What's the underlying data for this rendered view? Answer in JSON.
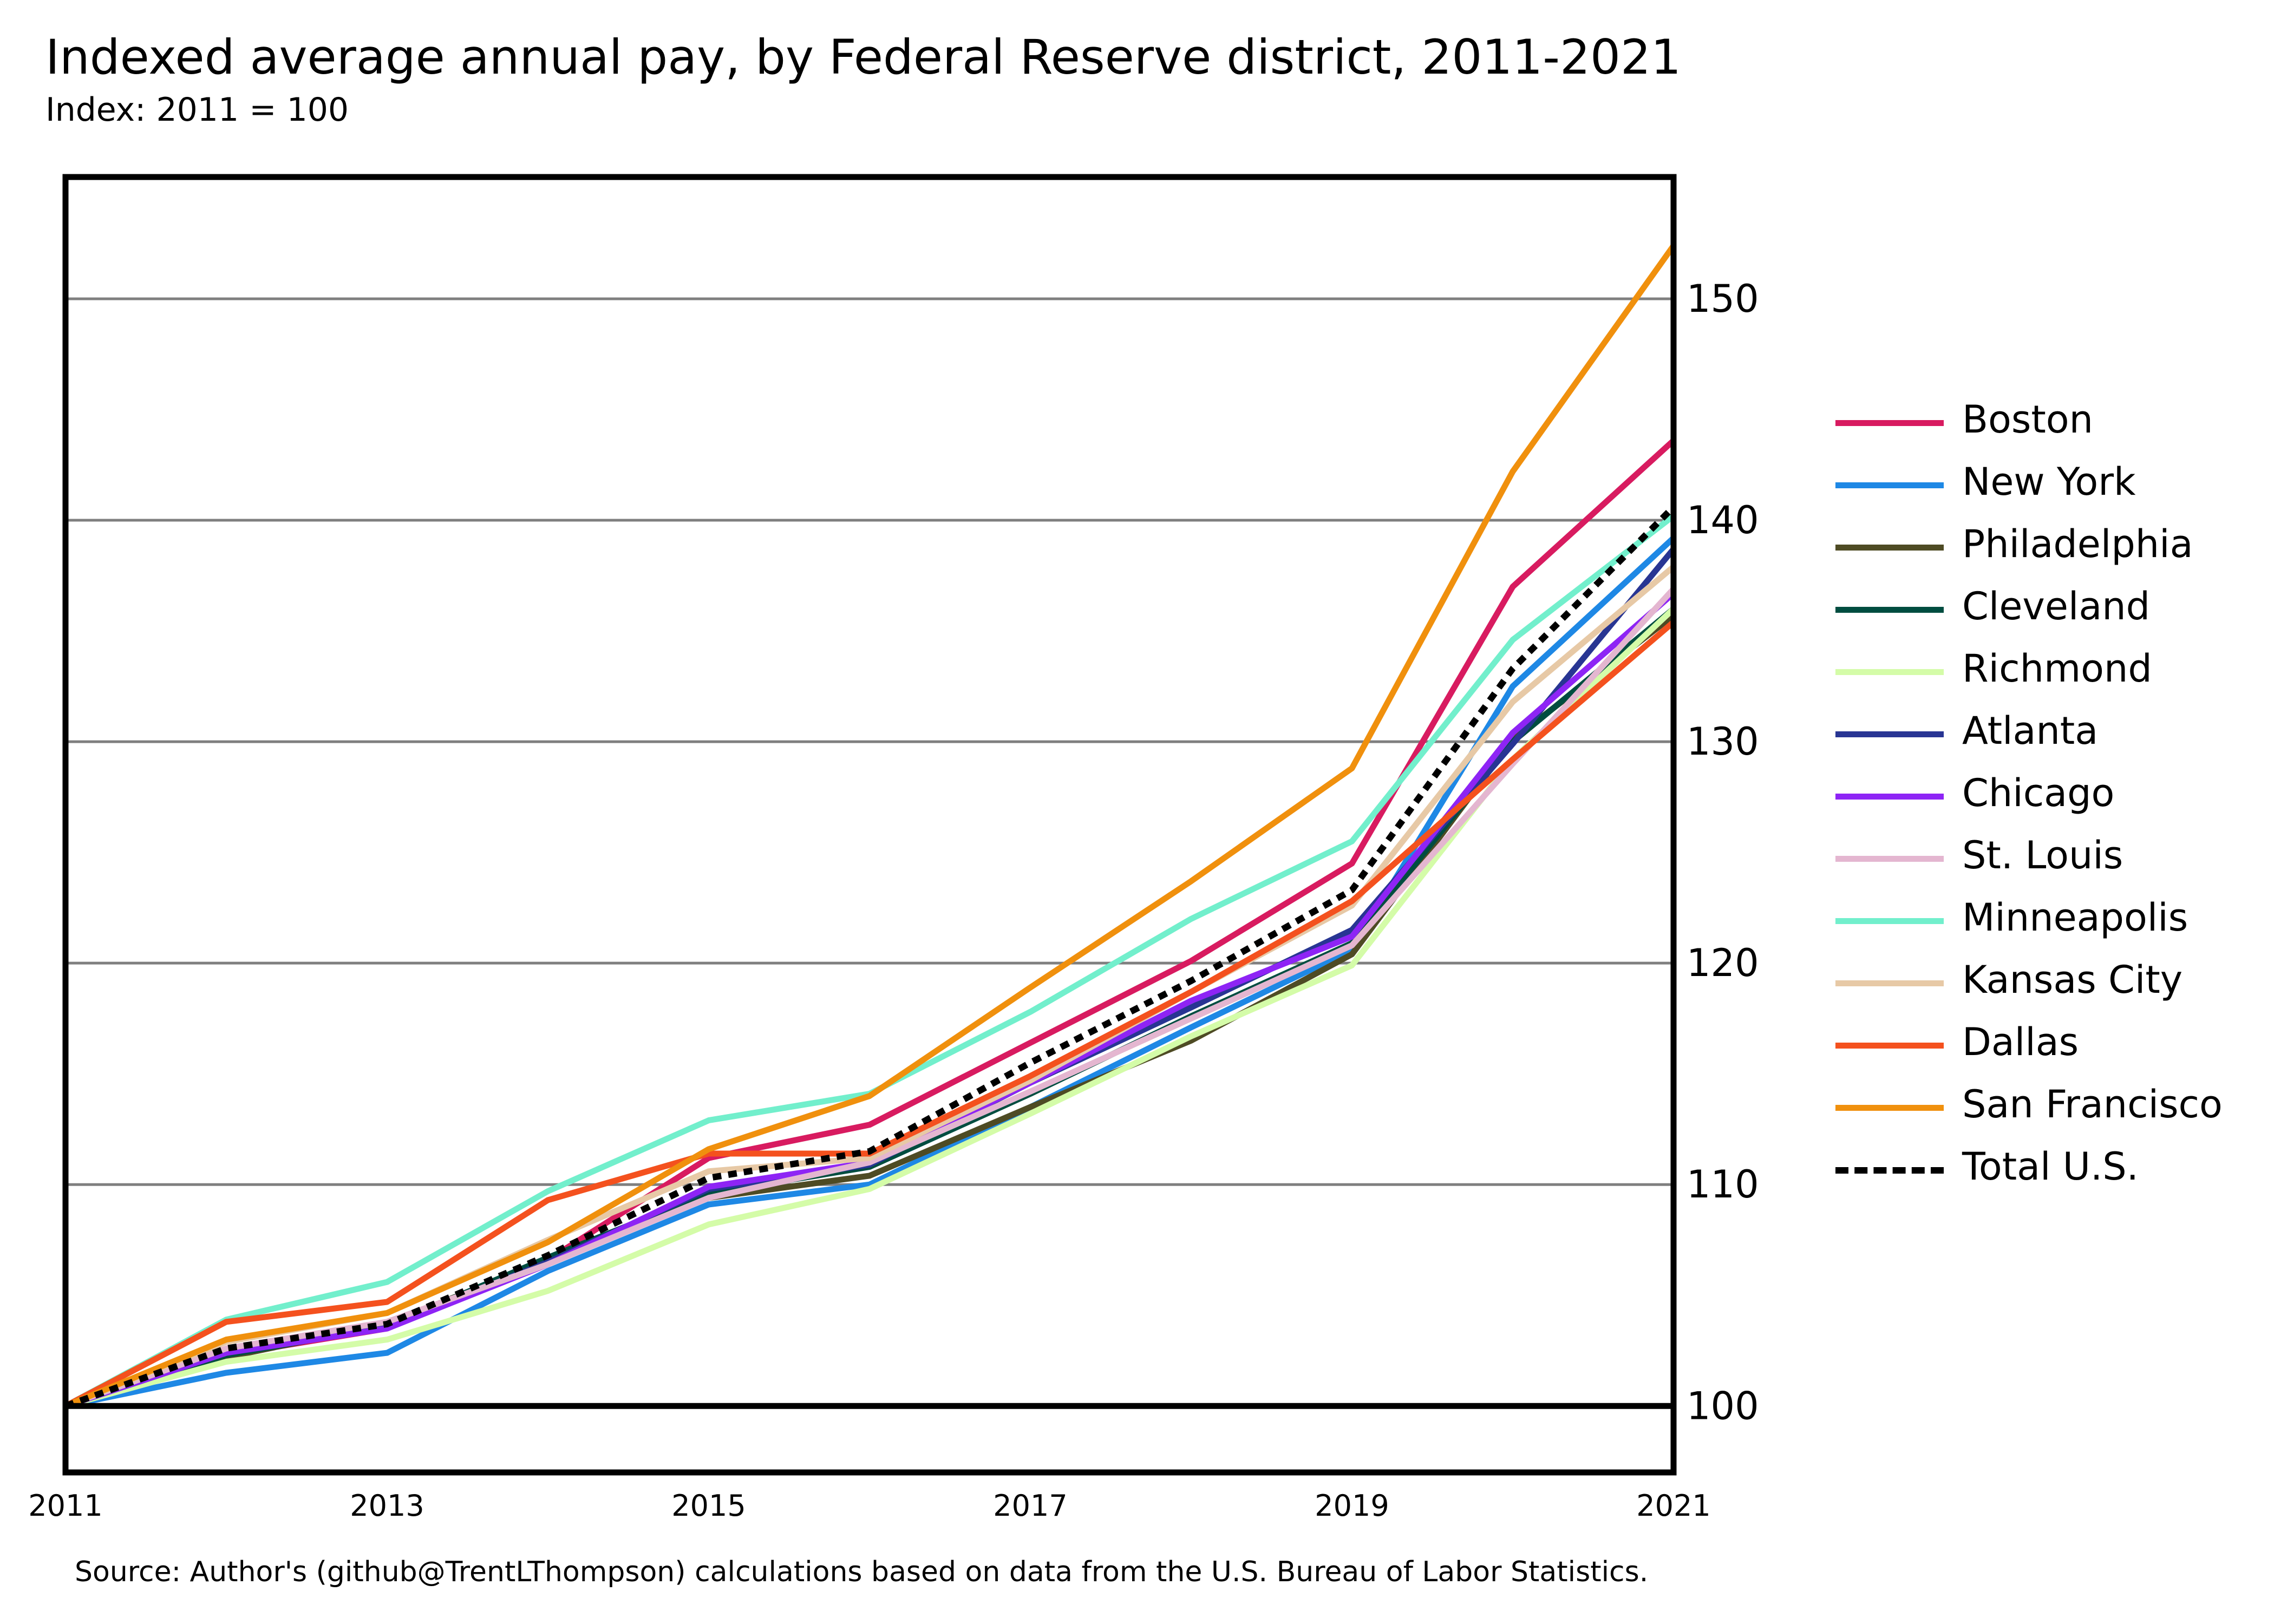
{
  "title": "Indexed average annual pay, by Federal Reserve district, 2011-2021",
  "subtitle": "Index: 2011 = 100",
  "source": "Source: Author's (github@TrentLThompson) calculations based on data from the U.S. Bureau of Labor Statistics.",
  "chart_data": {
    "type": "line",
    "title": "Indexed average annual pay, by Federal Reserve district, 2011-2021",
    "subtitle": "Index: 2011 = 100",
    "x": [
      2011,
      2012,
      2013,
      2014,
      2015,
      2016,
      2017,
      2018,
      2019,
      2020,
      2021
    ],
    "x_ticks": [
      "2011",
      "2013",
      "2015",
      "2017",
      "2019",
      "2021"
    ],
    "y_ticks": [
      "100",
      "110",
      "120",
      "130",
      "140",
      "150"
    ],
    "xlim": [
      2011,
      2021
    ],
    "ylim": [
      97,
      155.5
    ],
    "y_axis_side": "right",
    "grid": "horizontal",
    "reference_line": 100,
    "legend_position": "right",
    "series": [
      {
        "name": "Boston",
        "color": "#D81B60",
        "dash": "solid",
        "values": [
          100,
          102.3,
          103.5,
          106.6,
          111.2,
          112.7,
          116.4,
          120.1,
          124.5,
          137.0,
          143.6
        ]
      },
      {
        "name": "New York",
        "color": "#1E88E5",
        "dash": "solid",
        "values": [
          100,
          101.5,
          102.4,
          106.1,
          109.1,
          110.0,
          113.5,
          117.1,
          120.6,
          132.5,
          139.2
        ]
      },
      {
        "name": "Philadelphia",
        "color": "#4E4B24",
        "dash": "solid",
        "values": [
          100,
          102.2,
          103.7,
          106.6,
          109.4,
          110.4,
          113.5,
          116.5,
          120.4,
          130.1,
          135.7
        ]
      },
      {
        "name": "Cleveland",
        "color": "#004D40",
        "dash": "solid",
        "values": [
          100,
          102.3,
          103.6,
          106.7,
          109.6,
          110.8,
          114.1,
          117.6,
          120.9,
          130.0,
          136.0
        ]
      },
      {
        "name": "Richmond",
        "color": "#D4FCA8",
        "dash": "solid",
        "values": [
          100,
          102.0,
          103.0,
          105.2,
          108.2,
          109.8,
          113.2,
          116.7,
          119.9,
          129.2,
          136.0
        ]
      },
      {
        "name": "Atlanta",
        "color": "#283593",
        "dash": "solid",
        "values": [
          100,
          102.4,
          103.6,
          106.5,
          109.8,
          110.9,
          114.6,
          118.0,
          121.5,
          129.9,
          138.7
        ]
      },
      {
        "name": "Chicago",
        "color": "#8E24F5",
        "dash": "solid",
        "values": [
          100,
          102.4,
          103.5,
          106.4,
          109.9,
          111.0,
          114.6,
          118.3,
          121.2,
          130.4,
          136.7
        ]
      },
      {
        "name": "St. Louis",
        "color": "#E4B6D0",
        "dash": "solid",
        "values": [
          100,
          102.6,
          103.8,
          106.4,
          109.4,
          111.0,
          114.2,
          117.5,
          120.8,
          129.0,
          136.9
        ]
      },
      {
        "name": "Minneapolis",
        "color": "#72EFCC",
        "dash": "solid",
        "values": [
          100,
          103.9,
          105.6,
          109.7,
          112.9,
          114.1,
          117.8,
          122.0,
          125.5,
          134.6,
          140.2
        ]
      },
      {
        "name": "Kansas City",
        "color": "#E7C9A6",
        "dash": "solid",
        "values": [
          100,
          102.9,
          104.2,
          107.5,
          110.6,
          111.2,
          114.7,
          118.7,
          122.6,
          131.8,
          137.9
        ]
      },
      {
        "name": "Dallas",
        "color": "#F4511E",
        "dash": "solid",
        "values": [
          100,
          103.8,
          104.7,
          109.3,
          111.4,
          111.4,
          114.9,
          118.7,
          122.8,
          129.2,
          135.4
        ]
      },
      {
        "name": "San Francisco",
        "color": "#F0900D",
        "dash": "solid",
        "values": [
          100,
          103.0,
          104.2,
          107.4,
          111.6,
          114.0,
          118.9,
          123.7,
          128.8,
          142.2,
          152.4
        ]
      },
      {
        "name": "Total U.S.",
        "color": "#000000",
        "dash": "dotted",
        "values": [
          100,
          102.6,
          103.7,
          106.8,
          110.3,
          111.5,
          115.5,
          119.2,
          123.3,
          133.3,
          140.6
        ]
      }
    ]
  }
}
